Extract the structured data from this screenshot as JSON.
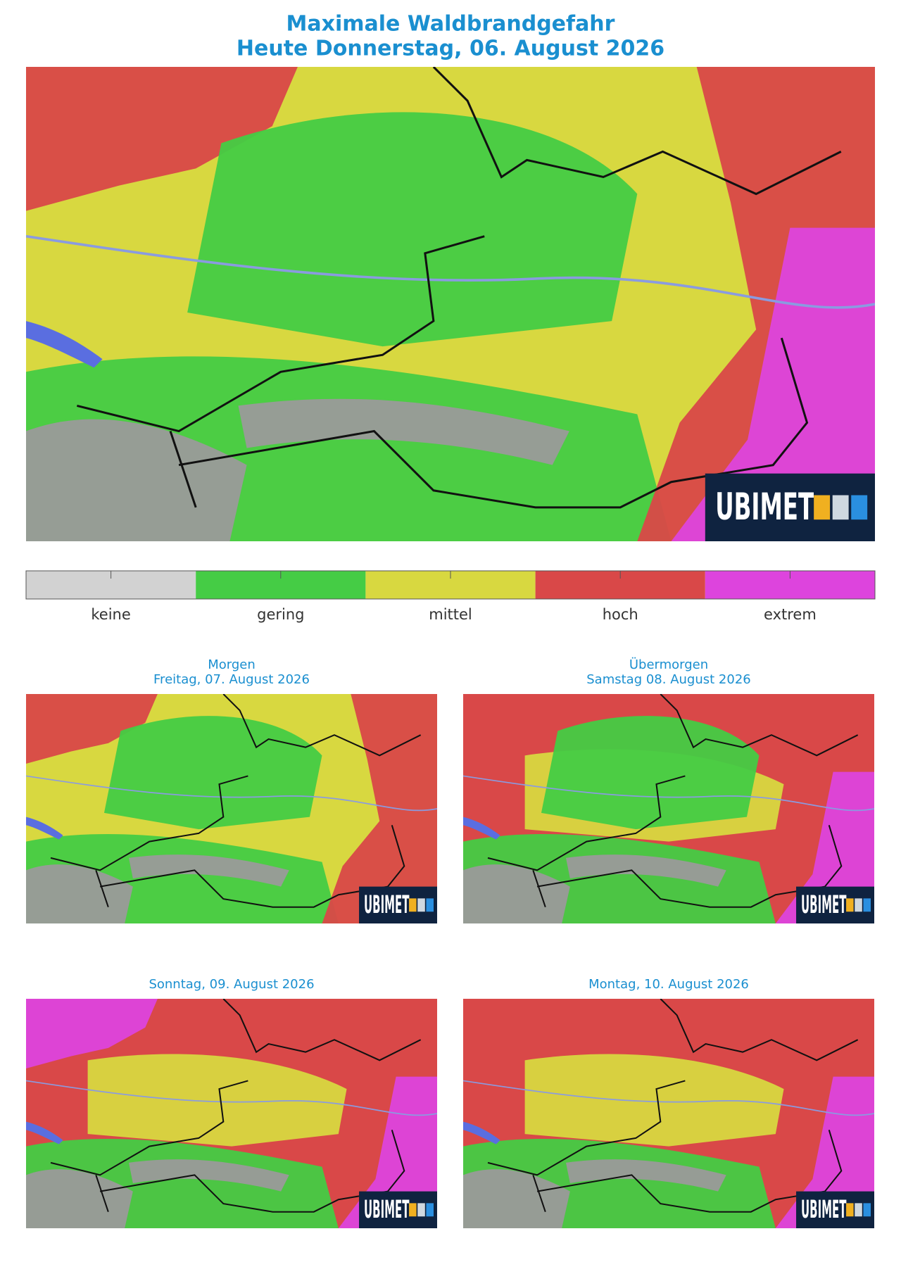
{
  "header": {
    "title": [
      "Maximale Waldbrandgefahr",
      "Heute Donnerstag, 06. August 2026"
    ]
  },
  "legend": [
    {
      "label": "keine",
      "color": "#d2d2d2"
    },
    {
      "label": "gering",
      "color": "#45cc45"
    },
    {
      "label": "mittel",
      "color": "#d8d840"
    },
    {
      "label": "hoch",
      "color": "#d94848"
    },
    {
      "label": "extrem",
      "color": "#dd44dd"
    }
  ],
  "logo": "UBIMET",
  "maps": [
    {
      "title": [
        "Morgen",
        "Freitag, 07. August 2026"
      ]
    },
    {
      "title": [
        "Übermorgen",
        "Samstag 08. August 2026"
      ]
    },
    {
      "title": [
        "Sonntag, 09. August 2026"
      ]
    },
    {
      "title": [
        "Montag, 10. August 2026"
      ]
    }
  ]
}
